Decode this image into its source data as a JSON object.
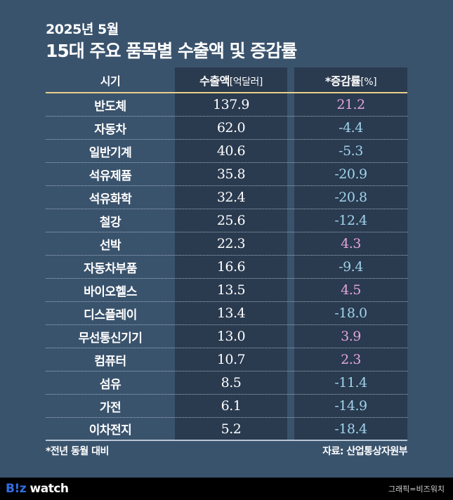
{
  "header": {
    "subtitle": "2025년 5월",
    "title": "15대 주요 품목별 수출액 및 증감률"
  },
  "table": {
    "columns": [
      {
        "label": "시기",
        "unit": ""
      },
      {
        "label": "수출액",
        "unit": "[억달러]"
      },
      {
        "label": "*증감률",
        "unit": "[%]"
      }
    ],
    "rows": [
      {
        "item": "반도체",
        "export": "137.9",
        "change": "21.2",
        "sign": "pos"
      },
      {
        "item": "자동차",
        "export": "62.0",
        "change": "-4.4",
        "sign": "neg"
      },
      {
        "item": "일반기계",
        "export": "40.6",
        "change": "-5.3",
        "sign": "neg"
      },
      {
        "item": "석유제품",
        "export": "35.8",
        "change": "-20.9",
        "sign": "neg"
      },
      {
        "item": "석유화학",
        "export": "32.4",
        "change": "-20.8",
        "sign": "neg"
      },
      {
        "item": "철강",
        "export": "25.6",
        "change": "-12.4",
        "sign": "neg"
      },
      {
        "item": "선박",
        "export": "22.3",
        "change": "4.3",
        "sign": "pos"
      },
      {
        "item": "자동차부품",
        "export": "16.6",
        "change": "-9.4",
        "sign": "neg"
      },
      {
        "item": "바이오헬스",
        "export": "13.5",
        "change": "4.5",
        "sign": "pos"
      },
      {
        "item": "디스플레이",
        "export": "13.4",
        "change": "-18.0",
        "sign": "neg"
      },
      {
        "item": "무선통신기기",
        "export": "13.0",
        "change": "3.9",
        "sign": "pos"
      },
      {
        "item": "컴퓨터",
        "export": "10.7",
        "change": "2.3",
        "sign": "pos"
      },
      {
        "item": "섬유",
        "export": "8.5",
        "change": "-11.4",
        "sign": "neg"
      },
      {
        "item": "가전",
        "export": "6.1",
        "change": "-14.9",
        "sign": "neg"
      },
      {
        "item": "이차전지",
        "export": "5.2",
        "change": "-18.4",
        "sign": "neg"
      }
    ]
  },
  "footnote": "*전년 동월 대비",
  "source": "자료: 산업통상자원부",
  "footer": {
    "logo_biz": "B!z",
    "logo_watch": " watch",
    "credit": "그래픽=비즈워치"
  },
  "colors": {
    "background": "#3a536d",
    "column_bg": "#2a3a4f",
    "header_rule": "#e8d08a",
    "positive": "#e3a6d9",
    "negative": "#9fd4ec",
    "logo_blue": "#2f6fe6"
  },
  "chart_data": {
    "type": "table",
    "title": "15대 주요 품목별 수출액 및 증감률",
    "subtitle": "2025년 5월",
    "columns": [
      "시기",
      "수출액 [억달러]",
      "*증감률 [%]"
    ],
    "categories": [
      "반도체",
      "자동차",
      "일반기계",
      "석유제품",
      "석유화학",
      "철강",
      "선박",
      "자동차부품",
      "바이오헬스",
      "디스플레이",
      "무선통신기기",
      "컴퓨터",
      "섬유",
      "가전",
      "이차전지"
    ],
    "series": [
      {
        "name": "수출액 [억달러]",
        "values": [
          137.9,
          62.0,
          40.6,
          35.8,
          32.4,
          25.6,
          22.3,
          16.6,
          13.5,
          13.4,
          13.0,
          10.7,
          8.5,
          6.1,
          5.2
        ]
      },
      {
        "name": "*증감률 [%]",
        "values": [
          21.2,
          -4.4,
          -5.3,
          -20.9,
          -20.8,
          -12.4,
          4.3,
          -9.4,
          4.5,
          -18.0,
          3.9,
          2.3,
          -11.4,
          -14.9,
          -18.4
        ]
      }
    ],
    "annotations": [
      "*전년 동월 대비",
      "자료: 산업통상자원부"
    ]
  }
}
